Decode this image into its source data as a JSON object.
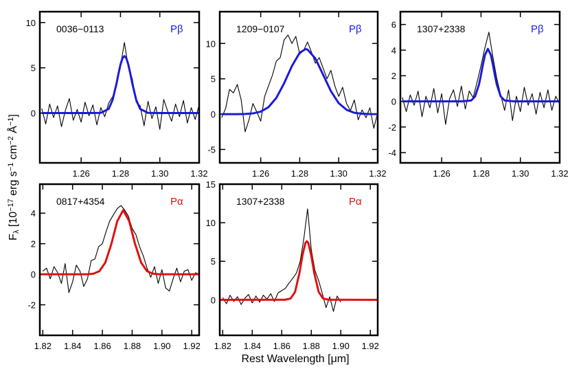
{
  "xlabel": "Rest Wavelength [μm]",
  "ylabel": [
    "F",
    "λ",
    " [10",
    "−17",
    " erg s",
    "−1",
    " cm",
    "−2",
    " Å",
    "−1",
    "]"
  ],
  "chart_data": [
    {
      "type": "line",
      "label": "0036−0113",
      "line": "Pβ",
      "line_color": "#1a1adb",
      "xlim": [
        1.239,
        1.32
      ],
      "ylim": [
        -5.5,
        11.2
      ],
      "xticks": [
        1.26,
        1.28,
        {
          "value": 1.3,
          "label": "1.30"
        },
        1.32
      ],
      "yticks": [
        0,
        5,
        10
      ],
      "series": [
        {
          "color": "#000000",
          "x": [
            1.24,
            1.242,
            1.244,
            1.246,
            1.248,
            1.25,
            1.252,
            1.254,
            1.256,
            1.258,
            1.26,
            1.262,
            1.264,
            1.266,
            1.268,
            1.27,
            1.272,
            1.274,
            1.276,
            1.278,
            1.28,
            1.282,
            1.284,
            1.286,
            1.288,
            1.29,
            1.292,
            1.294,
            1.296,
            1.298,
            1.3,
            1.302,
            1.304,
            1.306,
            1.308,
            1.31,
            1.312,
            1.314,
            1.316,
            1.318,
            1.32
          ],
          "values": [
            0.5,
            -1.2,
            1.0,
            -0.5,
            0.8,
            -1.5,
            0.3,
            1.6,
            -0.8,
            0.4,
            -1.0,
            1.2,
            -0.3,
            0.9,
            -1.3,
            0.6,
            -0.4,
            1.1,
            1.8,
            3.0,
            5.2,
            7.8,
            5.0,
            3.8,
            1.2,
            0.8,
            -1.4,
            1.3,
            -0.6,
            0.7,
            -1.8,
            1.5,
            0.2,
            -0.9,
            1.0,
            -0.4,
            1.4,
            -1.1,
            0.6,
            -0.7,
            0.9
          ]
        },
        {
          "color": "#1a1adb",
          "fit": true,
          "x": [
            1.24,
            1.26,
            1.27,
            1.274,
            1.276,
            1.278,
            1.279,
            1.28,
            1.281,
            1.282,
            1.283,
            1.284,
            1.285,
            1.286,
            1.288,
            1.29,
            1.294,
            1.3,
            1.32
          ],
          "values": [
            0,
            0,
            0.02,
            0.46,
            1.45,
            3.28,
            4.37,
            5.35,
            6.05,
            6.3,
            6.05,
            5.35,
            4.37,
            3.28,
            1.45,
            0.46,
            0.02,
            0,
            0
          ]
        }
      ]
    },
    {
      "type": "line",
      "label": "1209−0107",
      "line": "Pβ",
      "line_color": "#1a1adb",
      "xlim": [
        1.239,
        1.32
      ],
      "ylim": [
        -6.9,
        14.5
      ],
      "xticks": [
        1.26,
        1.28,
        {
          "value": 1.3,
          "label": "1.30"
        },
        1.32
      ],
      "yticks": [
        -5,
        0,
        5,
        10
      ],
      "series": [
        {
          "color": "#000000",
          "x": [
            1.24,
            1.242,
            1.244,
            1.246,
            1.248,
            1.25,
            1.252,
            1.254,
            1.256,
            1.258,
            1.26,
            1.262,
            1.264,
            1.266,
            1.268,
            1.27,
            1.272,
            1.274,
            1.276,
            1.278,
            1.28,
            1.282,
            1.284,
            1.286,
            1.288,
            1.29,
            1.292,
            1.294,
            1.296,
            1.298,
            1.3,
            1.302,
            1.304,
            1.306,
            1.308,
            1.31,
            1.312,
            1.314,
            1.316,
            1.318,
            1.32
          ],
          "values": [
            -0.5,
            0.8,
            3.5,
            3.0,
            4.2,
            2.0,
            -2.5,
            -0.8,
            1.5,
            0.3,
            -1.0,
            2.5,
            4.0,
            5.5,
            7.5,
            8.0,
            10.5,
            11.2,
            10.0,
            11.0,
            8.5,
            9.0,
            10.2,
            8.8,
            7.2,
            8.0,
            6.5,
            5.0,
            6.2,
            4.0,
            2.5,
            3.8,
            1.5,
            0.5,
            2.0,
            -0.8,
            0.6,
            -0.5,
            0.9,
            -2.0,
            0.2
          ]
        },
        {
          "color": "#1a1adb",
          "fit": true,
          "x": [
            1.24,
            1.244,
            1.248,
            1.252,
            1.256,
            1.26,
            1.264,
            1.268,
            1.272,
            1.276,
            1.28,
            1.283,
            1.284,
            1.288,
            1.292,
            1.296,
            1.3,
            1.304,
            1.308,
            1.312,
            1.316,
            1.32
          ],
          "values": [
            0,
            0,
            0,
            0.02,
            0.1,
            0.35,
            0.99,
            2.29,
            4.36,
            6.8,
            8.7,
            9.2,
            9.14,
            7.89,
            5.58,
            3.25,
            1.55,
            0.61,
            0.19,
            0.05,
            0.01,
            0
          ]
        }
      ]
    },
    {
      "type": "line",
      "label": "1307+2338",
      "line": "Pβ",
      "line_color": "#1a1adb",
      "xlim": [
        1.239,
        1.32
      ],
      "ylim": [
        -4.8,
        7.0
      ],
      "xticks": [
        1.26,
        1.28,
        {
          "value": 1.3,
          "label": "1.30"
        },
        1.32
      ],
      "yticks": [
        -4,
        -2,
        0,
        2,
        4,
        6
      ],
      "series": [
        {
          "color": "#000000",
          "x": [
            1.24,
            1.242,
            1.244,
            1.246,
            1.248,
            1.25,
            1.252,
            1.254,
            1.256,
            1.258,
            1.26,
            1.262,
            1.264,
            1.266,
            1.268,
            1.27,
            1.272,
            1.274,
            1.276,
            1.278,
            1.28,
            1.282,
            1.284,
            1.286,
            1.288,
            1.29,
            1.292,
            1.294,
            1.296,
            1.298,
            1.3,
            1.302,
            1.304,
            1.306,
            1.308,
            1.31,
            1.312,
            1.314,
            1.316,
            1.318,
            1.32
          ],
          "values": [
            0.3,
            -0.8,
            0.5,
            -0.3,
            0.8,
            -1.2,
            0.4,
            -0.5,
            1.0,
            -0.9,
            0.6,
            -1.8,
            0.2,
            0.9,
            -0.4,
            1.2,
            -0.6,
            0.8,
            0.3,
            1.5,
            2.8,
            4.2,
            5.4,
            3.5,
            1.8,
            0.5,
            -0.7,
            0.9,
            -1.5,
            0.4,
            -0.8,
            1.1,
            -0.3,
            0.6,
            -1.0,
            0.7,
            -0.5,
            0.9,
            -0.7,
            0.4,
            -0.2
          ]
        },
        {
          "color": "#1a1adb",
          "fit": true,
          "x": [
            1.24,
            1.27,
            1.275,
            1.277,
            1.279,
            1.28,
            1.281,
            1.282,
            1.2835,
            1.285,
            1.286,
            1.287,
            1.288,
            1.29,
            1.292,
            1.297,
            1.32
          ],
          "values": [
            0,
            0,
            0.07,
            0.39,
            1.33,
            2.08,
            2.9,
            3.62,
            4.1,
            3.62,
            2.9,
            2.08,
            1.33,
            0.39,
            0.07,
            0,
            0
          ]
        }
      ]
    },
    {
      "type": "line",
      "label": "0817+4354",
      "line": "Pα",
      "line_color": "#e01010",
      "xlim": [
        1.818,
        1.925
      ],
      "ylim": [
        -4.0,
        5.9
      ],
      "xticks": [
        1.82,
        1.84,
        1.86,
        1.88,
        {
          "value": 1.9,
          "label": "1.90"
        },
        1.92
      ],
      "yticks": [
        -2,
        0,
        2,
        4
      ],
      "series": [
        {
          "color": "#000000",
          "x": [
            1.82,
            1.8225,
            1.825,
            1.8275,
            1.83,
            1.8325,
            1.835,
            1.8375,
            1.84,
            1.8425,
            1.845,
            1.8475,
            1.85,
            1.8525,
            1.855,
            1.8575,
            1.86,
            1.8625,
            1.865,
            1.8675,
            1.87,
            1.8725,
            1.875,
            1.8775,
            1.88,
            1.8825,
            1.885,
            1.8875,
            1.89,
            1.8925,
            1.895,
            1.8975,
            1.9,
            1.9025,
            1.905,
            1.9075,
            1.91,
            1.9125,
            1.915,
            1.9175,
            1.92,
            1.9225,
            1.925
          ],
          "values": [
            0.2,
            0.4,
            -0.3,
            0.5,
            0.1,
            -0.6,
            0.7,
            -1.2,
            -0.5,
            0.6,
            0.2,
            -0.8,
            -0.3,
            0.9,
            1.0,
            1.8,
            2.0,
            2.8,
            3.5,
            3.9,
            4.3,
            4.5,
            4.2,
            3.8,
            3.0,
            2.6,
            1.8,
            1.2,
            0.4,
            -0.2,
            0.5,
            -0.6,
            0.3,
            -0.9,
            -1.1,
            -0.3,
            0.4,
            -0.5,
            0.2,
            0.3,
            -0.4,
            0.1,
            0.0
          ]
        },
        {
          "color": "#e01010",
          "fit": true,
          "x": [
            1.818,
            1.85,
            1.854,
            1.858,
            1.862,
            1.866,
            1.87,
            1.874,
            1.878,
            1.882,
            1.886,
            1.89,
            1.894,
            1.898,
            1.925
          ],
          "values": [
            0,
            0,
            0.04,
            0.2,
            0.77,
            1.97,
            3.48,
            4.2,
            3.48,
            1.97,
            0.77,
            0.2,
            0.04,
            0,
            0
          ]
        }
      ]
    },
    {
      "type": "line",
      "label": "1307+2338",
      "line": "Pα",
      "line_color": "#e01010",
      "xlim": [
        1.818,
        1.925
      ],
      "ylim": [
        -4.6,
        15
      ],
      "xticks": [
        1.82,
        1.84,
        1.86,
        1.88,
        {
          "value": 1.9,
          "label": "1.90"
        },
        1.92
      ],
      "yticks": [
        0,
        5,
        10,
        15
      ],
      "series": [
        {
          "color": "#000000",
          "x": [
            1.82,
            1.8225,
            1.825,
            1.8275,
            1.83,
            1.8325,
            1.835,
            1.8375,
            1.84,
            1.8425,
            1.845,
            1.8475,
            1.85,
            1.8525,
            1.855,
            1.8575,
            1.86,
            1.8625,
            1.865,
            1.8675,
            1.87,
            1.8725,
            1.875,
            1.8775,
            1.88,
            1.8825,
            1.885,
            1.8875,
            1.89,
            1.8925,
            1.895,
            1.8975,
            1.9
          ],
          "values": [
            0.3,
            -0.5,
            0.6,
            -0.2,
            0.4,
            -0.6,
            0.2,
            0.7,
            -0.4,
            0.5,
            -0.3,
            0.6,
            0.1,
            0.8,
            -0.2,
            0.9,
            1.2,
            1.5,
            2.2,
            2.8,
            3.5,
            5.0,
            8.0,
            11.8,
            6.5,
            3.8,
            2.5,
            0.8,
            -1.0,
            0.4,
            -1.5,
            0.5,
            -0.3
          ]
        },
        {
          "color": "#e01010",
          "fit": true,
          "x": [
            1.818,
            1.862,
            1.866,
            1.869,
            1.872,
            1.874,
            1.876,
            1.877,
            1.878,
            1.88,
            1.882,
            1.885,
            1.888,
            1.892,
            1.925
          ],
          "values": [
            0,
            0.01,
            0.17,
            1.03,
            3.48,
            5.74,
            7.37,
            7.6,
            7.37,
            5.74,
            3.48,
            1.03,
            0.17,
            0.01,
            0
          ]
        }
      ]
    }
  ]
}
